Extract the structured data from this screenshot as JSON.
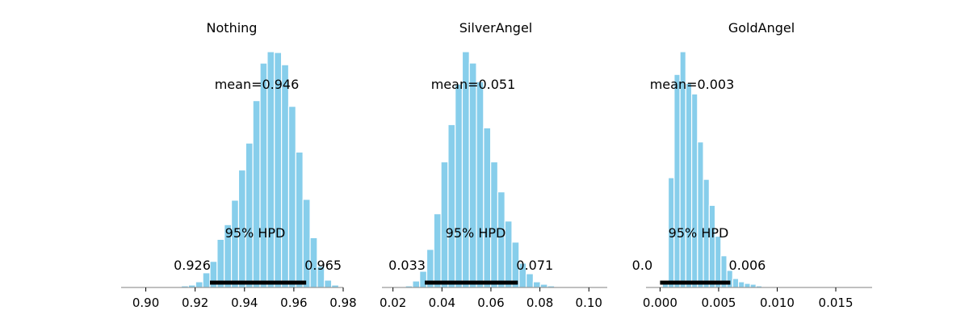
{
  "colors": {
    "bar": "#87ceeb",
    "bar_edge": "#ffffff",
    "hpd_line": "#000000",
    "axis": "#808080"
  },
  "chart_data": [
    {
      "type": "bar",
      "title": "Nothing",
      "xlim": [
        0.89,
        0.98
      ],
      "xticks": [
        0.9,
        0.92,
        0.94,
        0.96,
        0.98
      ],
      "xtick_labels": [
        "0.90",
        "0.92",
        "0.94",
        "0.96",
        "0.98"
      ],
      "bin_start": 0.9115,
      "bin_width": 0.0029,
      "values": [
        1,
        2,
        3,
        7,
        18,
        32,
        59,
        77,
        107,
        144,
        177,
        229,
        275,
        289,
        288,
        273,
        222,
        166,
        108,
        61,
        26,
        9,
        3,
        1
      ],
      "mean_label": "mean=0.946",
      "hpd_label": "95% HPD",
      "hpd_interval": [
        0.926,
        0.965
      ],
      "hpd_low_label": "0.926",
      "hpd_high_label": "0.965"
    },
    {
      "type": "bar",
      "title": "SilverAngel",
      "xlim": [
        0.0155,
        0.1075
      ],
      "xticks": [
        0.02,
        0.04,
        0.06,
        0.08,
        0.1
      ],
      "xtick_labels": [
        "0.02",
        "0.04",
        "0.06",
        "0.08",
        "0.10"
      ],
      "bin_start": 0.0251,
      "bin_width": 0.0029,
      "values": [
        2,
        8,
        20,
        47,
        91,
        155,
        201,
        251,
        291,
        277,
        254,
        197,
        155,
        118,
        82,
        56,
        30,
        17,
        7,
        4,
        2,
        1
      ],
      "mean_label": "mean=0.051",
      "hpd_label": "95% HPD",
      "hpd_interval": [
        0.033,
        0.071
      ],
      "hpd_low_label": "0.033",
      "hpd_high_label": "0.071"
    },
    {
      "type": "bar",
      "title": "GoldAngel",
      "xlim": [
        -0.0012,
        0.0181
      ],
      "xticks": [
        0.0,
        0.005,
        0.01,
        0.015
      ],
      "xtick_labels": [
        "0.000",
        "0.005",
        "0.010",
        "0.015"
      ],
      "bin_start": 0.0002,
      "bin_width": 0.0005,
      "values": [
        5,
        135,
        262,
        290,
        251,
        238,
        179,
        133,
        101,
        63,
        39,
        21,
        11,
        7,
        5,
        4,
        2,
        1
      ],
      "mean_label": "mean=0.003",
      "hpd_label": "95% HPD",
      "hpd_interval": [
        0.0,
        0.006
      ],
      "hpd_low_label": "0.0",
      "hpd_high_label": "0.006"
    }
  ]
}
